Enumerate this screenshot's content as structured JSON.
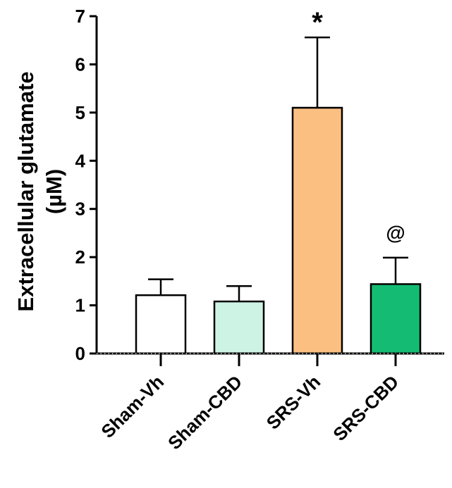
{
  "chart_data": {
    "type": "bar",
    "title": "",
    "xlabel": "",
    "ylabel_lines": [
      "Extracellular glutamate",
      "(µM)"
    ],
    "ylim": [
      0,
      7
    ],
    "yticks": [
      "0",
      "1",
      "2",
      "3",
      "4",
      "5",
      "6",
      "7"
    ],
    "categories": [
      "Sham-Vh",
      "Sham-CBD",
      "SRS-Vh",
      "SRS-CBD"
    ],
    "values": [
      1.21,
      1.08,
      5.1,
      1.44
    ],
    "errors": [
      0.33,
      0.32,
      1.46,
      0.55
    ],
    "colors": [
      "#ffffff",
      "#cdf3e4",
      "#fcbf82",
      "#14bc73"
    ],
    "annotations": [
      {
        "category": "SRS-Vh",
        "text": "*"
      },
      {
        "category": "SRS-CBD",
        "text": "@"
      }
    ]
  }
}
